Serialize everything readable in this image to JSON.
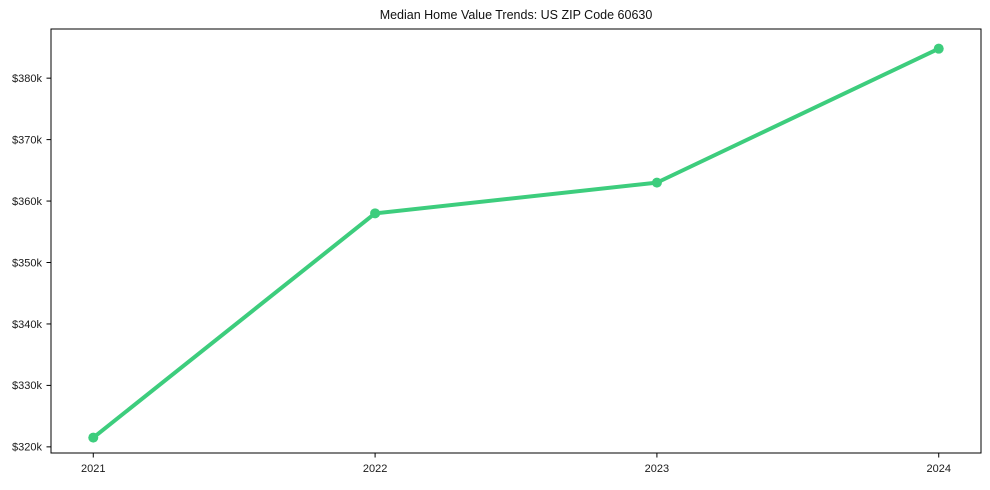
{
  "page": {
    "background_color": "#ffffff"
  },
  "chart_data": {
    "type": "line",
    "title": "Median Home Value Trends: US ZIP Code 60630",
    "categories": [
      "2021",
      "2022",
      "2023",
      "2024"
    ],
    "series": [
      {
        "name": "Median Home Value",
        "values": [
          321500,
          358000,
          363000,
          384800
        ]
      }
    ],
    "xlabel": "",
    "ylabel": "",
    "ylim": [
      319000,
      388000
    ],
    "yticks": [
      {
        "value": 320000,
        "label": "$320k"
      },
      {
        "value": 330000,
        "label": "$330k"
      },
      {
        "value": 340000,
        "label": "$340k"
      },
      {
        "value": 350000,
        "label": "$350k"
      },
      {
        "value": 360000,
        "label": "$360k"
      },
      {
        "value": 370000,
        "label": "$370k"
      },
      {
        "value": 380000,
        "label": "$380k"
      }
    ],
    "grid": false,
    "legend_position": "none",
    "line_color": "#3dcd7d",
    "marker": "circle",
    "axis_color": "#000000",
    "tick_label_color": "#1a1a1a"
  }
}
